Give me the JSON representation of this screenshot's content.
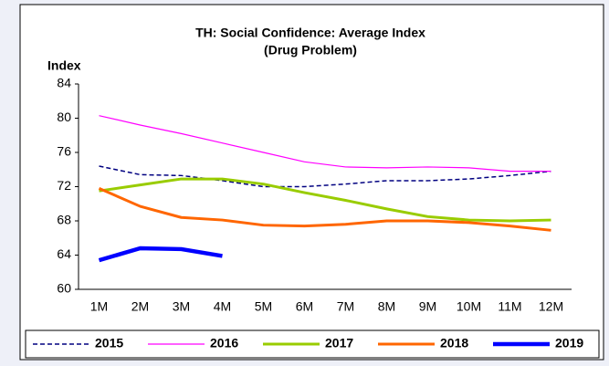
{
  "chart_data": {
    "type": "line",
    "title": "TH: Social Confidence: Average Index",
    "subtitle": "(Drug Problem)",
    "y_label": "Index",
    "categories": [
      "1M",
      "2M",
      "3M",
      "4M",
      "5M",
      "6M",
      "7M",
      "8M",
      "9M",
      "10M",
      "11M",
      "12M"
    ],
    "ylim": [
      60,
      84
    ],
    "yticks": [
      60,
      64,
      68,
      72,
      76,
      80,
      84
    ],
    "grid": false,
    "legend": "bottom",
    "series": [
      {
        "name": "2015",
        "color": "#000080",
        "width": 1.5,
        "dash": true,
        "values": [
          74.4,
          73.4,
          73.3,
          72.7,
          72.0,
          72.0,
          72.3,
          72.7,
          72.7,
          72.9,
          73.3,
          73.8
        ]
      },
      {
        "name": "2016",
        "color": "#ff00ff",
        "width": 1.2,
        "dash": false,
        "values": [
          80.3,
          79.2,
          78.2,
          77.1,
          76.0,
          74.9,
          74.3,
          74.2,
          74.3,
          74.2,
          73.8,
          73.8
        ]
      },
      {
        "name": "2017",
        "color": "#99cc00",
        "width": 3,
        "dash": false,
        "values": [
          71.5,
          72.2,
          72.9,
          72.9,
          72.3,
          71.3,
          70.4,
          69.4,
          68.5,
          68.1,
          68.0,
          68.1
        ]
      },
      {
        "name": "2018",
        "color": "#ff6600",
        "width": 3,
        "dash": false,
        "values": [
          71.8,
          69.7,
          68.4,
          68.1,
          67.5,
          67.4,
          67.6,
          68.0,
          68.0,
          67.8,
          67.4,
          66.9
        ]
      },
      {
        "name": "2019",
        "color": "#0000ff",
        "width": 4.5,
        "dash": false,
        "values": [
          63.4,
          64.8,
          64.7,
          63.9,
          null,
          null,
          null,
          null,
          null,
          null,
          null,
          null
        ]
      }
    ]
  }
}
